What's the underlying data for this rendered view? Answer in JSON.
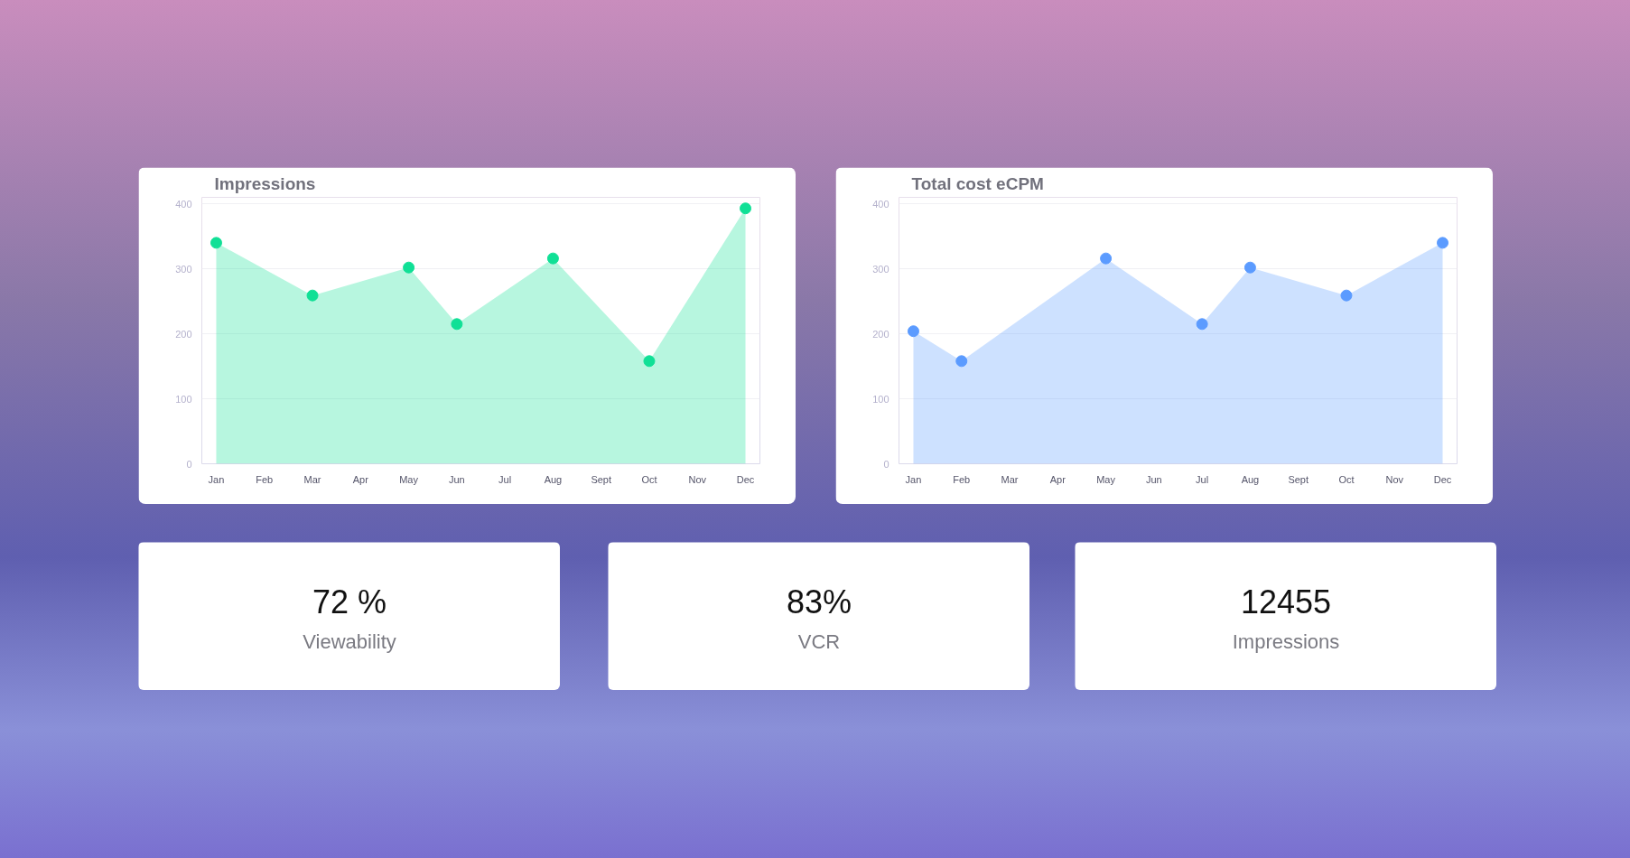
{
  "chart_data": [
    {
      "type": "area",
      "title": "Impressions",
      "marker": "circle",
      "grid": "y",
      "categories": [
        "Jan",
        "Feb",
        "Mar",
        "Apr",
        "May",
        "Jun",
        "Jul",
        "Aug",
        "Sept",
        "Oct",
        "Nov",
        "Dec"
      ],
      "series": [
        {
          "color": "#10e096",
          "values": [
            340,
            null,
            259,
            null,
            302,
            215,
            null,
            316,
            null,
            158,
            null,
            393
          ]
        }
      ],
      "ylim": [
        0,
        410
      ],
      "yticks": [
        0,
        100,
        200,
        300,
        400
      ]
    },
    {
      "type": "area",
      "title": "Total cost eCPM",
      "marker": "circle",
      "grid": "y",
      "categories": [
        "Jan",
        "Feb",
        "Mar",
        "Apr",
        "May",
        "Jun",
        "Jul",
        "Aug",
        "Sept",
        "Oct",
        "Nov",
        "Dec"
      ],
      "series": [
        {
          "color": "#5b9bff",
          "values": [
            204,
            158,
            null,
            null,
            316,
            null,
            215,
            302,
            null,
            259,
            null,
            340
          ]
        }
      ],
      "ylim": [
        0,
        410
      ],
      "yticks": [
        0,
        100,
        200,
        300,
        400
      ]
    },
    {
      "type": "other",
      "title": "72 %",
      "subtitle": "Viewability"
    },
    {
      "type": "other",
      "title": "83%",
      "subtitle": "VCR"
    },
    {
      "type": "other",
      "title": "12455",
      "subtitle": "Impressions"
    }
  ]
}
